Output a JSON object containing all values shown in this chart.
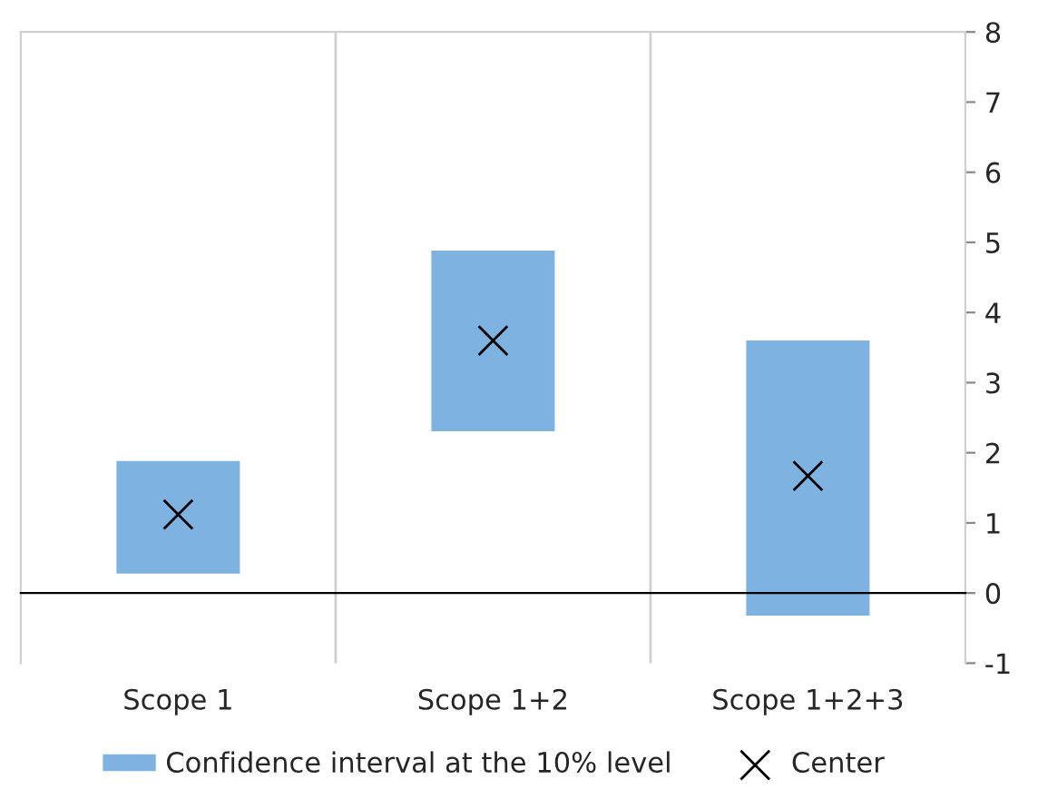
{
  "chart_data": {
    "type": "bar",
    "categories": [
      "Scope 1",
      "Scope 1+2",
      "Scope 1+2+3"
    ],
    "series": [
      {
        "name": "Confidence interval at the 10% level",
        "color": "#7eb2e0",
        "base": [
          0.26,
          2.29,
          -0.34
        ],
        "values": [
          1.64,
          2.61,
          3.96
        ]
      },
      {
        "name": "Center",
        "type": "scatter",
        "color": "#000000",
        "marker": "cross",
        "x": [
          "Scope 1",
          "Scope 1+2",
          "Scope 1+2+3"
        ],
        "values": [
          1.12,
          3.6,
          1.67
        ]
      }
    ],
    "ylim": [
      -1,
      8
    ],
    "yticks": [
      -1,
      0,
      1,
      2,
      3,
      4,
      5,
      6,
      7,
      8
    ],
    "grid": "x",
    "legend": "bottom"
  }
}
